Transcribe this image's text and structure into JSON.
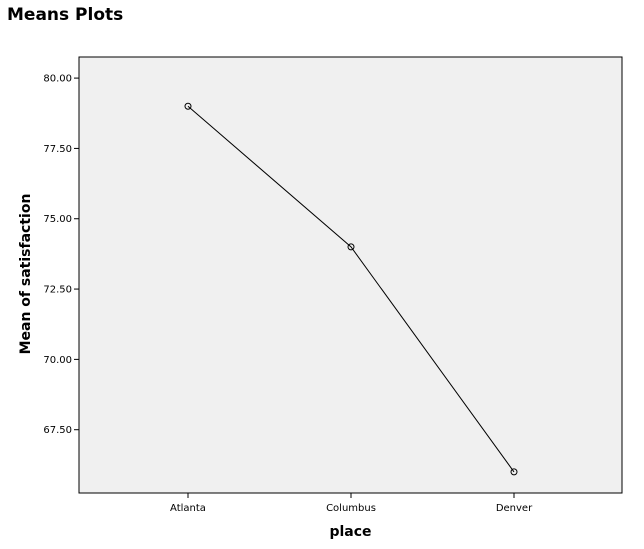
{
  "header": {
    "title": "Means Plots"
  },
  "chart_data": {
    "type": "line",
    "title": "",
    "xlabel": "place",
    "ylabel": "Mean of satisfaction",
    "categories": [
      "Atlanta",
      "Columbus",
      "Denver"
    ],
    "series": [
      {
        "values": [
          79.0,
          74.0,
          66.0
        ]
      }
    ],
    "ylim": [
      65.25,
      80.75
    ],
    "yticks": [
      67.5,
      70.0,
      72.5,
      75.0,
      77.5,
      80.0
    ],
    "ytick_labels": [
      "67.50",
      "70.00",
      "72.50",
      "75.00",
      "77.50",
      "80.00"
    ],
    "grid": false,
    "legend": "none",
    "marker": "open-circle",
    "colors": {
      "plot_background": "#f0f0f0",
      "line": "#000000",
      "frame": "#000000"
    }
  }
}
